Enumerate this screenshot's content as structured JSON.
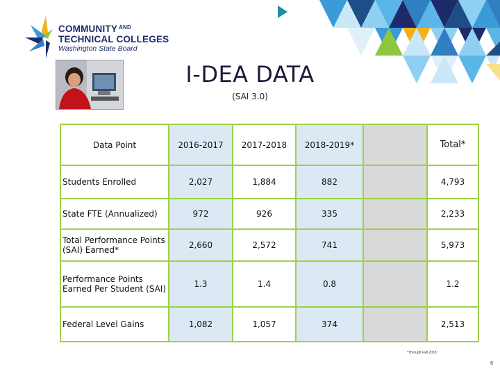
{
  "logo": {
    "line1": "COMMUNITY",
    "and": "AND",
    "line2": "TECHNICAL COLLEGES",
    "line3": "Washington State Board"
  },
  "title": "I-DEA DATA",
  "subtitle": "(SAI 3.0)",
  "table": {
    "headers": [
      "Data Point",
      "2016-2017",
      "2017-2018",
      "2018-2019*",
      "",
      "Total*"
    ],
    "rows": [
      {
        "label": "Students Enrolled",
        "values": [
          "2,027",
          "1,884",
          "882",
          "",
          "4,793"
        ]
      },
      {
        "label": "State FTE (Annualized)",
        "values": [
          "972",
          "926",
          "335",
          "",
          "2,233"
        ]
      },
      {
        "label": "Total Performance Points (SAI) Earned*",
        "values": [
          "2,660",
          "2,572",
          "741",
          "",
          "5,973"
        ]
      },
      {
        "label": "Performance Points Earned Per Student (SAI)",
        "values": [
          "1.3",
          "1.4",
          "0.8",
          "",
          "1.2"
        ]
      },
      {
        "label": "Federal Level Gains",
        "values": [
          "1,082",
          "1,057",
          "374",
          "",
          "2,513"
        ]
      }
    ]
  },
  "footnote": "*Through Fall 2018",
  "page_number": "8",
  "colors": {
    "brand_navy": "#1d2b6b",
    "table_border": "#9bd14a",
    "cell_blue": "#dde8f5",
    "cell_grey": "#d9d9d9"
  }
}
